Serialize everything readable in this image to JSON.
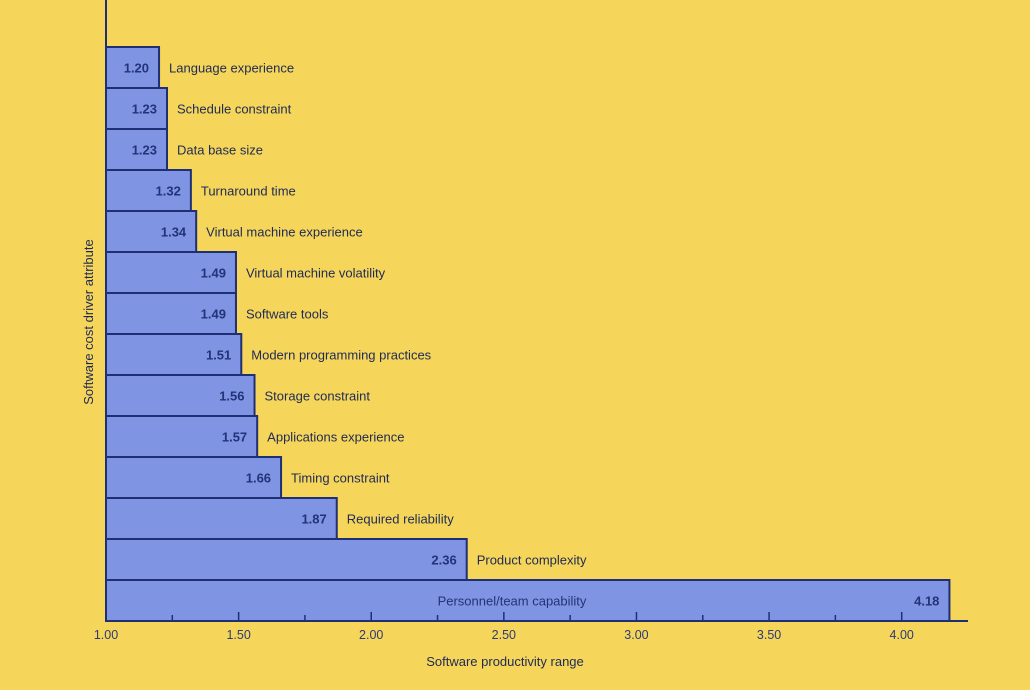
{
  "chart_data": {
    "type": "bar",
    "orientation": "horizontal",
    "xlabel": "Software productivity range",
    "ylabel": "Software cost driver attribute",
    "xlim": [
      1.0,
      4.25
    ],
    "xticks": [
      "1.00",
      "1.50",
      "2.00",
      "2.50",
      "3.00",
      "3.50",
      "4.00"
    ],
    "bars": [
      {
        "label": "Language experience",
        "value": 1.2,
        "value_text": "1.20"
      },
      {
        "label": "Schedule constraint",
        "value": 1.23,
        "value_text": "1.23"
      },
      {
        "label": "Data base size",
        "value": 1.23,
        "value_text": "1.23"
      },
      {
        "label": "Turnaround time",
        "value": 1.32,
        "value_text": "1.32"
      },
      {
        "label": "Virtual machine experience",
        "value": 1.34,
        "value_text": "1.34"
      },
      {
        "label": "Virtual machine volatility",
        "value": 1.49,
        "value_text": "1.49"
      },
      {
        "label": "Software tools",
        "value": 1.49,
        "value_text": "1.49"
      },
      {
        "label": "Modern programming practices",
        "value": 1.51,
        "value_text": "1.51"
      },
      {
        "label": "Storage constraint",
        "value": 1.56,
        "value_text": "1.56"
      },
      {
        "label": "Applications experience",
        "value": 1.57,
        "value_text": "1.57"
      },
      {
        "label": "Timing constraint",
        "value": 1.66,
        "value_text": "1.66"
      },
      {
        "label": "Required reliability",
        "value": 1.87,
        "value_text": "1.87"
      },
      {
        "label": "Product complexity",
        "value": 2.36,
        "value_text": "2.36"
      },
      {
        "label": "Personnel/team capability",
        "value": 4.18,
        "value_text": "4.18"
      }
    ],
    "colors": {
      "background": "#f5d55a",
      "bar_fill": "#7f94e3",
      "bar_stroke": "#1f2f73",
      "text": "#1f2a55"
    }
  }
}
